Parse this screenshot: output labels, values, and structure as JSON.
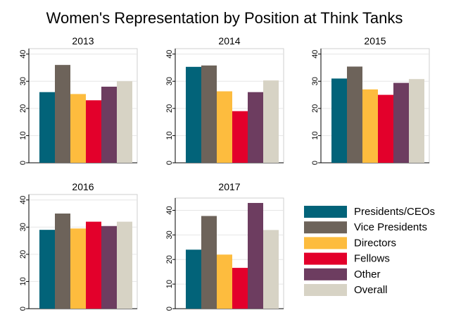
{
  "chart_data": {
    "type": "bar",
    "title": "Women's Representation by Position at Think Tanks",
    "categories": [
      "Presidents/CEOs",
      "Vice Presidents",
      "Directors",
      "Fellows",
      "Other",
      "Overall"
    ],
    "colors": [
      "#026379",
      "#6d635a",
      "#fdbc3e",
      "#e3002b",
      "#6d3d60",
      "#d7d3c5"
    ],
    "legend_position": "bottom-right",
    "panels": [
      {
        "label": "2013",
        "ylim": [
          0,
          42
        ],
        "yticks": [
          "0",
          "10",
          "20",
          "30",
          "40"
        ],
        "tick_values": [
          0,
          10,
          20,
          30,
          40
        ],
        "values": [
          26,
          36,
          25.3,
          23,
          28,
          30
        ]
      },
      {
        "label": "2014",
        "ylim": [
          0,
          42
        ],
        "yticks": [
          "0",
          "10",
          "20",
          "30",
          "40"
        ],
        "tick_values": [
          0,
          10,
          20,
          30,
          40
        ],
        "values": [
          35.3,
          35.8,
          26.3,
          19,
          26,
          30.3
        ]
      },
      {
        "label": "2015",
        "ylim": [
          0,
          42
        ],
        "yticks": [
          "0",
          "10",
          "20",
          "30",
          "40"
        ],
        "tick_values": [
          0,
          10,
          20,
          30,
          40
        ],
        "values": [
          31,
          35.4,
          27,
          25,
          29.4,
          30.8
        ]
      },
      {
        "label": "2016",
        "ylim": [
          0,
          42
        ],
        "yticks": [
          "0",
          "10",
          "20",
          "30",
          "40"
        ],
        "tick_values": [
          0,
          10,
          20,
          30,
          40
        ],
        "values": [
          29,
          35,
          29.5,
          32,
          30.4,
          32
        ]
      },
      {
        "label": "2017",
        "ylim": [
          0,
          45
        ],
        "yticks": [
          "0",
          "10",
          "20",
          "30",
          "40"
        ],
        "tick_values": [
          0,
          10,
          20,
          30,
          40
        ],
        "values": [
          24,
          37.7,
          22,
          16.6,
          43,
          32
        ]
      }
    ]
  }
}
